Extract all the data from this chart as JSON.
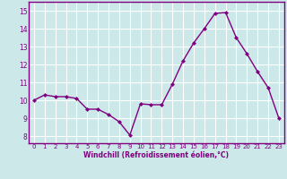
{
  "x": [
    0,
    1,
    2,
    3,
    4,
    5,
    6,
    7,
    8,
    9,
    10,
    11,
    12,
    13,
    14,
    15,
    16,
    17,
    18,
    19,
    20,
    21,
    22,
    23
  ],
  "y": [
    10.0,
    10.3,
    10.2,
    10.2,
    10.1,
    9.5,
    9.5,
    9.2,
    8.8,
    8.05,
    9.8,
    9.75,
    9.75,
    10.9,
    12.2,
    13.2,
    14.0,
    14.85,
    14.9,
    13.5,
    12.6,
    11.6,
    10.7,
    9.0
  ],
  "line_color": "#800080",
  "marker_color": "#800080",
  "bg_color": "#cce8e8",
  "grid_color": "#ffffff",
  "xlabel": "Windchill (Refroidissement éolien,°C)",
  "ylabel_ticks": [
    8,
    9,
    10,
    11,
    12,
    13,
    14,
    15
  ],
  "xlim": [
    -0.5,
    23.5
  ],
  "ylim": [
    7.6,
    15.5
  ],
  "xlabel_color": "#800080",
  "tick_color": "#800080",
  "spine_color": "#800080"
}
